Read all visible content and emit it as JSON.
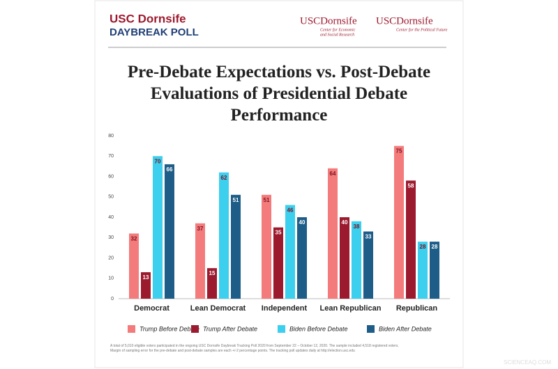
{
  "header": {
    "brand_line1": "USC Dornsife",
    "brand_line2": "DAYBREAK POLL",
    "logos": [
      {
        "name": "USCDornsife",
        "subtitle_lines": [
          "Center for Economic",
          "and Social Research"
        ]
      },
      {
        "name": "USCDornsife",
        "subtitle_lines": [
          "Center for the Political Future"
        ]
      }
    ]
  },
  "chart_data": {
    "type": "bar",
    "title": "Pre-Debate Expectations vs. Post-Debate Evaluations of Presidential Debate Performance",
    "categories": [
      "Democrat",
      "Lean Democrat",
      "Independent",
      "Lean Republican",
      "Republican"
    ],
    "series": [
      {
        "name": "Trump Before Debate",
        "color": "#f47b7b",
        "values": [
          32,
          37,
          51,
          64,
          75
        ]
      },
      {
        "name": "Trump After Debate",
        "color": "#9c1a2e",
        "values": [
          13,
          15,
          35,
          40,
          58
        ]
      },
      {
        "name": "Biden Before Debate",
        "color": "#3ccfee",
        "values": [
          70,
          62,
          46,
          38,
          28
        ]
      },
      {
        "name": "Biden After Debate",
        "color": "#1d5d88",
        "values": [
          66,
          51,
          40,
          33,
          28
        ]
      }
    ],
    "ylim": [
      0,
      80
    ],
    "yticks": [
      0,
      10,
      20,
      30,
      40,
      50,
      60,
      70,
      80
    ],
    "grid": false
  },
  "footnote": [
    "A total of 5,010 eligible voters participated in the ongoing USC Dornsife Daybreak Tracking Poll 2020 from September 22 – October 12, 2020. The sample included 4,518 registered voters.",
    "Margin of sampling error for the pre-debate and post-debate samples are each +/-2 percentage points. The tracking poll updates daily at http://election.usc.edu"
  ],
  "watermark": "SCIENCEAQ.COM"
}
